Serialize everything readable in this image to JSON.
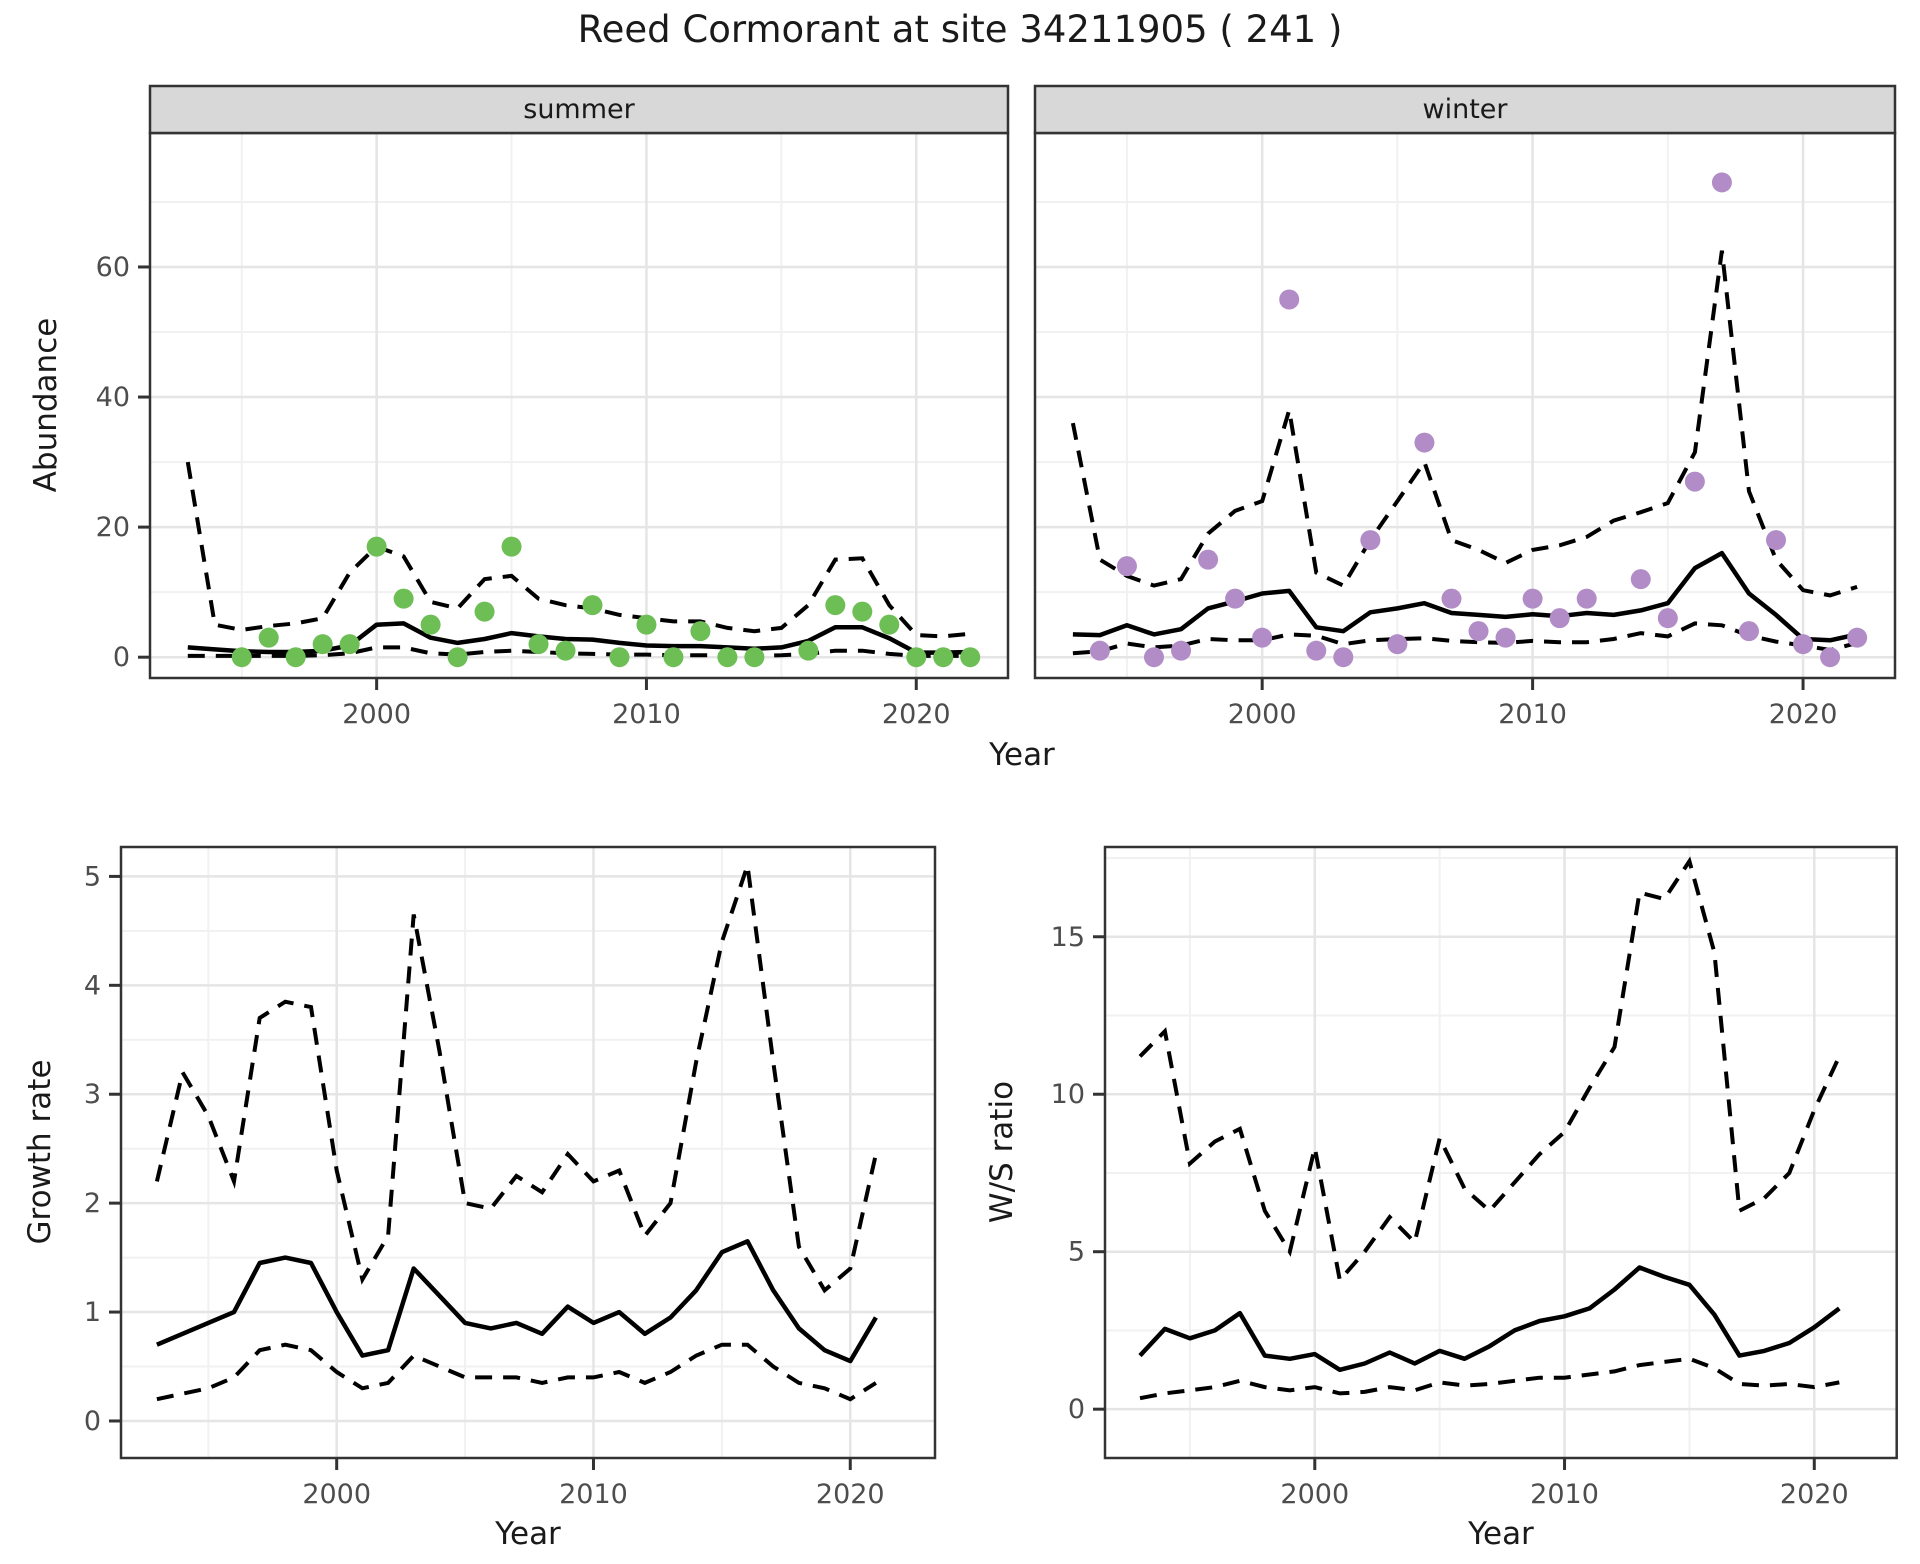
{
  "title": "Reed Cormorant at site 34211905 ( 241 )",
  "colors": {
    "summer_point": "#6dbe55",
    "winter_point": "#b28cc6",
    "line": "#000000",
    "grid_major": "#e5e5e5",
    "grid_minor": "#f1f1f1",
    "panel_border": "#333333",
    "strip_bg": "#d8d8d8",
    "tick_text": "#4d4d4d"
  },
  "chart_data": [
    {
      "id": "abundance-summer",
      "type": "scatter+line",
      "facet": "summer",
      "xlabel": "Year",
      "ylabel": "Abundance",
      "xlim": [
        1991.6,
        2023.4
      ],
      "ylim": [
        -3.2,
        80.6
      ],
      "x_ticks": [
        2000,
        2010,
        2020
      ],
      "x_minor": [
        1995,
        2005,
        2015
      ],
      "y_ticks": [
        0,
        20,
        40,
        60
      ],
      "y_minor": [
        10,
        30,
        50,
        70
      ],
      "point_color": "#6dbe55",
      "points": {
        "years": [
          1995,
          1996,
          1997,
          1998,
          1999,
          2000,
          2001,
          2002,
          2003,
          2004,
          2005,
          2006,
          2007,
          2008,
          2009,
          2010,
          2011,
          2012,
          2013,
          2014,
          2016,
          2017,
          2018,
          2019,
          2020,
          2021,
          2022
        ],
        "values": [
          0,
          3,
          0,
          2,
          2,
          17,
          9,
          5,
          0,
          7,
          17,
          2,
          1,
          8,
          0,
          5,
          0,
          4,
          0,
          0,
          1,
          8,
          7,
          5,
          0,
          0,
          0
        ]
      },
      "lines": {
        "years_start": 1993,
        "fit": [
          1.5,
          1.2,
          0.9,
          0.8,
          0.8,
          1.0,
          1.8,
          5.0,
          5.2,
          3.0,
          2.2,
          2.8,
          3.7,
          3.2,
          2.8,
          2.7,
          2.2,
          1.8,
          1.7,
          1.7,
          1.5,
          1.3,
          1.5,
          2.5,
          4.6,
          4.6,
          2.9,
          0.7,
          0.7,
          0.8
        ],
        "upper_ci": [
          30,
          5,
          4.2,
          4.8,
          5.2,
          6,
          13,
          17,
          15.5,
          8.5,
          7.5,
          12,
          12.5,
          9,
          8,
          7.5,
          6.5,
          6,
          5.5,
          5.5,
          4.5,
          4,
          4.5,
          8,
          15,
          15.2,
          8,
          3.4,
          3.2,
          3.6
        ],
        "lower_ci": [
          0.2,
          0.2,
          0.2,
          0.2,
          0.2,
          0.3,
          0.6,
          1.5,
          1.5,
          0.6,
          0.4,
          0.8,
          1.0,
          0.8,
          0.6,
          0.5,
          0.4,
          0.4,
          0.3,
          0.3,
          0.3,
          0.2,
          0.3,
          0.5,
          1.0,
          1.0,
          0.5,
          0.2,
          0.2,
          0.2
        ]
      }
    },
    {
      "id": "abundance-winter",
      "type": "scatter+line",
      "facet": "winter",
      "xlabel": "Year",
      "ylabel": "Abundance",
      "xlim": [
        1991.6,
        2023.4
      ],
      "ylim": [
        -3.2,
        80.6
      ],
      "x_ticks": [
        2000,
        2010,
        2020
      ],
      "x_minor": [
        1995,
        2005,
        2015
      ],
      "y_ticks": [
        0,
        20,
        40,
        60
      ],
      "y_minor": [
        10,
        30,
        50,
        70
      ],
      "point_color": "#b28cc6",
      "points": {
        "years": [
          1994,
          1995,
          1996,
          1997,
          1998,
          1999,
          2000,
          2001,
          2002,
          2003,
          2004,
          2005,
          2006,
          2007,
          2008,
          2009,
          2010,
          2011,
          2012,
          2014,
          2015,
          2016,
          2017,
          2018,
          2019,
          2020,
          2021,
          2022
        ],
        "values": [
          1,
          14,
          0,
          1,
          15,
          9,
          3,
          55,
          1,
          0,
          18,
          2,
          33,
          9,
          4,
          3,
          9,
          6,
          9,
          12,
          6,
          27,
          73,
          4,
          18,
          2,
          0,
          3
        ]
      },
      "lines": {
        "years_start": 1993,
        "fit": [
          3.5,
          3.4,
          4.9,
          3.5,
          4.3,
          7.5,
          8.6,
          9.8,
          10.2,
          4.6,
          4.0,
          6.9,
          7.5,
          8.3,
          6.8,
          6.5,
          6.2,
          6.6,
          6.3,
          6.8,
          6.5,
          7.2,
          8.3,
          13.7,
          16.0,
          9.8,
          6.5,
          2.8,
          2.6,
          3.5
        ],
        "upper_ci": [
          36,
          15,
          12.5,
          11,
          12,
          19,
          22.5,
          24,
          38,
          13,
          11,
          18,
          24,
          30,
          18,
          16.5,
          14.5,
          16.5,
          17.2,
          18.5,
          21,
          22.3,
          23.7,
          31.5,
          62.5,
          25.5,
          15,
          10.3,
          9.5,
          10.8
        ],
        "lower_ci": [
          0.6,
          0.9,
          2.1,
          1.5,
          1.8,
          2.8,
          2.6,
          2.6,
          3.5,
          3.3,
          2.0,
          2.6,
          2.8,
          2.9,
          2.5,
          2.3,
          2.2,
          2.5,
          2.3,
          2.3,
          2.8,
          3.7,
          3.2,
          5.2,
          4.9,
          3.3,
          2.4,
          1.8,
          1.1,
          2.2
        ]
      }
    },
    {
      "id": "growth-rate",
      "type": "line",
      "facet": null,
      "xlabel": "Year",
      "ylabel": "Growth rate",
      "xlim": [
        1991.6,
        2023.3
      ],
      "ylim": [
        -0.34,
        5.27
      ],
      "x_ticks": [
        2000,
        2010,
        2020
      ],
      "x_minor": [
        1995,
        2005,
        2015
      ],
      "y_ticks": [
        0,
        1,
        2,
        3,
        4,
        5
      ],
      "y_minor": [
        0.5,
        1.5,
        2.5,
        3.5,
        4.5
      ],
      "lines": {
        "years_start": 1993,
        "fit": [
          0.7,
          0.8,
          0.9,
          1.0,
          1.45,
          1.5,
          1.45,
          1.0,
          0.6,
          0.65,
          1.4,
          1.15,
          0.9,
          0.85,
          0.9,
          0.8,
          1.05,
          0.9,
          1.0,
          0.8,
          0.95,
          1.2,
          1.55,
          1.65,
          1.2,
          0.85,
          0.65,
          0.55,
          0.95
        ],
        "upper_ci": [
          2.2,
          3.2,
          2.8,
          2.2,
          3.7,
          3.85,
          3.8,
          2.3,
          1.3,
          1.7,
          4.65,
          3.4,
          2.0,
          1.95,
          2.25,
          2.1,
          2.45,
          2.2,
          2.3,
          1.7,
          2.0,
          3.3,
          4.4,
          5.1,
          3.3,
          1.6,
          1.2,
          1.4,
          2.45
        ],
        "lower_ci": [
          0.2,
          0.25,
          0.3,
          0.4,
          0.65,
          0.7,
          0.65,
          0.45,
          0.3,
          0.35,
          0.6,
          0.5,
          0.4,
          0.4,
          0.4,
          0.35,
          0.4,
          0.4,
          0.45,
          0.35,
          0.45,
          0.6,
          0.7,
          0.7,
          0.5,
          0.35,
          0.3,
          0.2,
          0.35
        ]
      }
    },
    {
      "id": "ws-ratio",
      "type": "line",
      "facet": null,
      "xlabel": "Year",
      "ylabel": "W/S ratio",
      "xlim": [
        1991.6,
        2023.3
      ],
      "ylim": [
        -1.55,
        17.85
      ],
      "x_ticks": [
        2000,
        2010,
        2020
      ],
      "x_minor": [
        1995,
        2005,
        2015
      ],
      "y_ticks": [
        0,
        5,
        10,
        15
      ],
      "y_minor": [
        2.5,
        7.5,
        12.5,
        17.5
      ],
      "lines": {
        "years_start": 1993,
        "fit": [
          1.7,
          2.55,
          2.25,
          2.5,
          3.05,
          1.7,
          1.6,
          1.75,
          1.25,
          1.45,
          1.8,
          1.45,
          1.85,
          1.6,
          2.0,
          2.5,
          2.8,
          2.95,
          3.2,
          3.8,
          4.5,
          4.2,
          3.95,
          3.0,
          1.7,
          1.85,
          2.1,
          2.6,
          3.2
        ],
        "upper_ci": [
          11.2,
          12,
          7.8,
          8.5,
          8.9,
          6.3,
          5.0,
          8.3,
          4.1,
          5.0,
          6.1,
          5.3,
          8.6,
          7.0,
          6.3,
          7.2,
          8.1,
          8.8,
          10.2,
          11.5,
          16.4,
          16.2,
          17.4,
          14.5,
          6.3,
          6.7,
          7.5,
          9.5,
          11.2
        ],
        "lower_ci": [
          0.35,
          0.5,
          0.6,
          0.7,
          0.9,
          0.7,
          0.6,
          0.7,
          0.5,
          0.55,
          0.7,
          0.6,
          0.85,
          0.75,
          0.8,
          0.9,
          1.0,
          1.0,
          1.1,
          1.2,
          1.4,
          1.5,
          1.6,
          1.3,
          0.8,
          0.75,
          0.8,
          0.7,
          0.85
        ]
      }
    }
  ]
}
